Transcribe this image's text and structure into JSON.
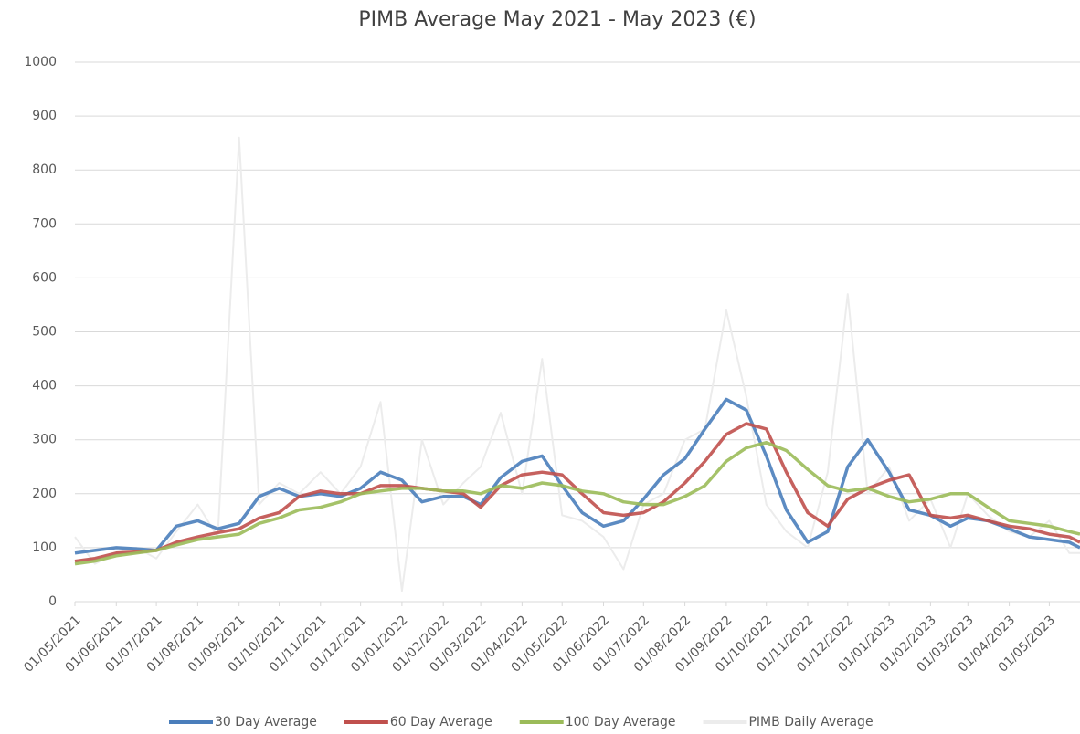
{
  "chart_data": {
    "type": "line",
    "title": "PIMB Average May 2021 - May 2023 (€)",
    "x": [
      "01/05/2021",
      "16/05/2021",
      "01/06/2021",
      "16/06/2021",
      "01/07/2021",
      "16/07/2021",
      "01/08/2021",
      "16/08/2021",
      "01/09/2021",
      "16/09/2021",
      "01/10/2021",
      "16/10/2021",
      "01/11/2021",
      "16/11/2021",
      "01/12/2021",
      "16/12/2021",
      "01/01/2022",
      "16/01/2022",
      "01/02/2022",
      "16/02/2022",
      "01/03/2022",
      "16/03/2022",
      "01/04/2022",
      "16/04/2022",
      "01/05/2022",
      "16/05/2022",
      "01/06/2022",
      "16/06/2022",
      "01/07/2022",
      "16/07/2022",
      "01/08/2022",
      "16/08/2022",
      "01/09/2022",
      "16/09/2022",
      "01/10/2022",
      "16/10/2022",
      "01/11/2022",
      "16/11/2022",
      "01/12/2022",
      "16/12/2022",
      "01/01/2023",
      "16/01/2023",
      "01/02/2023",
      "16/02/2023",
      "01/03/2023",
      "16/03/2023",
      "01/04/2023",
      "16/04/2023",
      "01/05/2023",
      "16/05/2023",
      "24/05/2023"
    ],
    "series": [
      {
        "name": "PIMB Daily Average",
        "color": "#ececec",
        "values": [
          120,
          70,
          90,
          100,
          80,
          130,
          180,
          120,
          860,
          180,
          220,
          200,
          240,
          200,
          250,
          370,
          20,
          300,
          180,
          220,
          250,
          350,
          200,
          450,
          160,
          150,
          120,
          60,
          180,
          200,
          300,
          320,
          540,
          380,
          180,
          130,
          100,
          240,
          570,
          200,
          250,
          150,
          190,
          100,
          200,
          160,
          130,
          120,
          150,
          90,
          90
        ]
      },
      {
        "name": "30 Day Average",
        "color": "#4a7ebb",
        "values": [
          90,
          95,
          100,
          98,
          95,
          140,
          150,
          135,
          145,
          195,
          210,
          195,
          200,
          195,
          210,
          240,
          225,
          185,
          195,
          195,
          180,
          230,
          260,
          270,
          215,
          165,
          140,
          150,
          190,
          235,
          265,
          320,
          375,
          355,
          270,
          170,
          110,
          130,
          250,
          300,
          240,
          170,
          160,
          140,
          155,
          150,
          135,
          120,
          115,
          110,
          100
        ]
      },
      {
        "name": "60 Day Average",
        "color": "#c0504d",
        "values": [
          75,
          80,
          90,
          92,
          95,
          110,
          120,
          128,
          135,
          155,
          165,
          195,
          205,
          200,
          200,
          215,
          215,
          210,
          205,
          200,
          175,
          215,
          235,
          240,
          235,
          200,
          165,
          160,
          165,
          185,
          220,
          260,
          310,
          330,
          320,
          240,
          165,
          140,
          190,
          210,
          225,
          235,
          160,
          155,
          160,
          150,
          140,
          135,
          125,
          120,
          110
        ]
      },
      {
        "name": "100 Day Average",
        "color": "#9bbb59",
        "values": [
          70,
          75,
          85,
          90,
          95,
          105,
          115,
          120,
          125,
          145,
          155,
          170,
          175,
          185,
          200,
          205,
          210,
          210,
          205,
          205,
          200,
          215,
          210,
          220,
          215,
          205,
          200,
          185,
          180,
          180,
          195,
          215,
          260,
          285,
          295,
          280,
          245,
          215,
          205,
          210,
          195,
          185,
          190,
          200,
          200,
          175,
          150,
          145,
          140,
          130,
          125
        ]
      }
    ],
    "xlim": [
      "01/05/2021",
      "24/05/2023"
    ],
    "xticks": [
      "01/05/2021",
      "01/06/2021",
      "01/07/2021",
      "01/08/2021",
      "01/09/2021",
      "01/10/2021",
      "01/11/2021",
      "01/12/2021",
      "01/01/2022",
      "01/02/2022",
      "01/03/2022",
      "01/04/2022",
      "01/05/2022",
      "01/06/2022",
      "01/07/2022",
      "01/08/2022",
      "01/09/2022",
      "01/10/2022",
      "01/11/2022",
      "01/12/2022",
      "01/01/2023",
      "01/02/2023",
      "01/03/2023",
      "01/04/2023",
      "01/05/2023"
    ],
    "ylim": [
      0,
      1000
    ],
    "yticks": [
      0,
      100,
      200,
      300,
      400,
      500,
      600,
      700,
      800,
      900,
      1000
    ],
    "grid": true,
    "legend_order": [
      1,
      2,
      3,
      0
    ]
  }
}
